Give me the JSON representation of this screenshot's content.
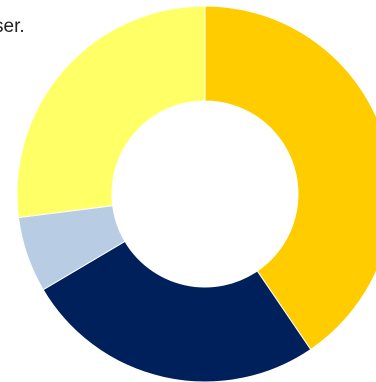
{
  "fragment_text": "ser.",
  "chart_data": {
    "type": "pie",
    "title": "",
    "donut": true,
    "slices": [
      {
        "value": 40.5,
        "color": "#FFCC00"
      },
      {
        "value": 26.0,
        "color": "#00205B"
      },
      {
        "value": 6.5,
        "color": "#B8CCE4"
      },
      {
        "value": 27.0,
        "color": "#FFFF66"
      }
    ],
    "start_angle_deg": 0,
    "direction": "clockwise",
    "legend": "none"
  }
}
